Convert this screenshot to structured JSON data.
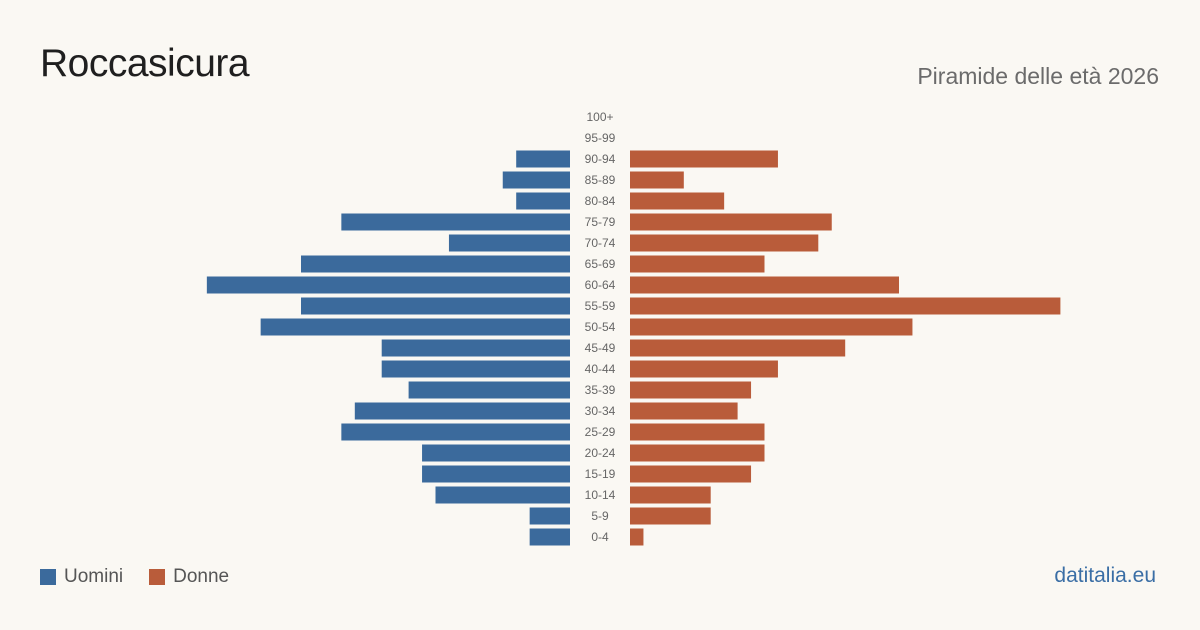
{
  "header": {
    "title": "Roccasicura",
    "subtitle": "Piramide delle età 2026"
  },
  "footer": {
    "source": "datitalia.eu"
  },
  "colors": {
    "male": "#3b6a9c",
    "female": "#b95c3a",
    "background": "#faf8f3",
    "label": "#666666"
  },
  "chart_data": {
    "type": "bar",
    "orientation": "horizontal-pyramid",
    "categories": [
      "100+",
      "95-99",
      "90-94",
      "85-89",
      "80-84",
      "75-79",
      "70-74",
      "65-69",
      "60-64",
      "55-59",
      "50-54",
      "45-49",
      "40-44",
      "35-39",
      "30-34",
      "25-29",
      "20-24",
      "15-19",
      "10-14",
      "5-9",
      "0-4"
    ],
    "series": [
      {
        "name": "Uomini",
        "values": [
          0,
          0,
          4,
          5,
          4,
          17,
          9,
          20,
          27,
          20,
          23,
          14,
          14,
          12,
          16,
          17,
          11,
          11,
          10,
          3,
          3
        ]
      },
      {
        "name": "Donne",
        "values": [
          0,
          0,
          11,
          4,
          7,
          15,
          14,
          10,
          20,
          32,
          21,
          16,
          11,
          9,
          8,
          10,
          10,
          9,
          6,
          6,
          1
        ]
      }
    ],
    "legend": "bottom-left",
    "grid": false
  }
}
